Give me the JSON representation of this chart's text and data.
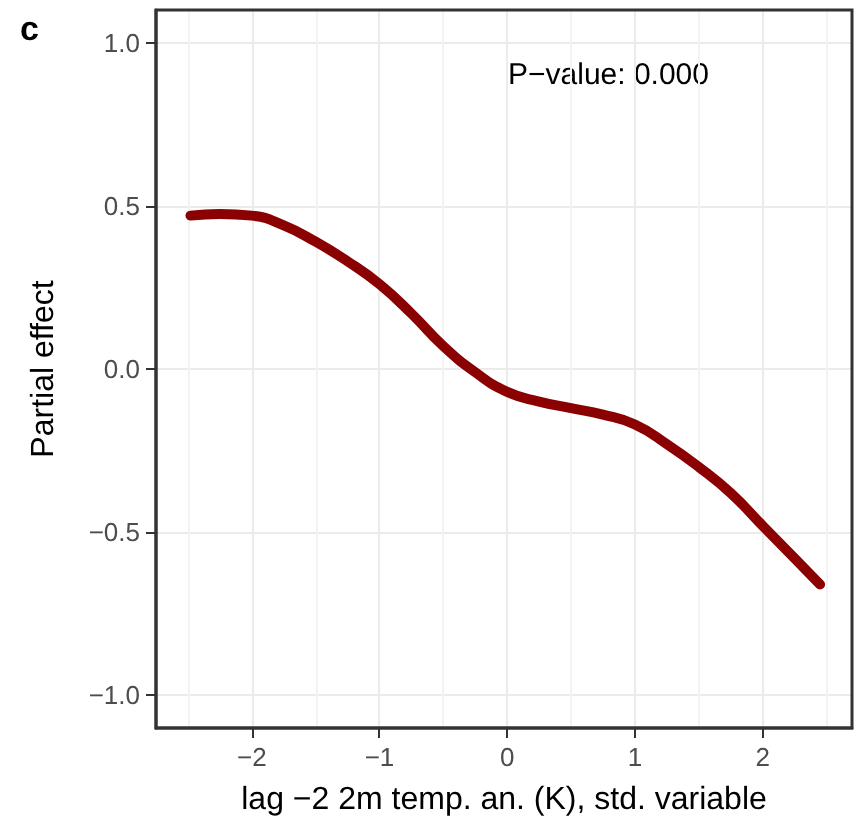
{
  "chart_data": {
    "type": "line",
    "ylabel": "Partial effect",
    "xlabel": "lag −2 2m temp. an. (K), std. variable",
    "annotations": [
      "c",
      "P−value: 0.000"
    ],
    "x": [
      -2.48,
      -2.25,
      -2,
      -1.75,
      -1.5,
      -1.25,
      -1,
      -0.75,
      -0.5,
      -0.25,
      0,
      0.25,
      0.5,
      0.75,
      1,
      1.25,
      1.5,
      1.75,
      2,
      2.25,
      2.45
    ],
    "series": [
      {
        "color": "#8b0000",
        "values": [
          0.47,
          0.475,
          0.47,
          0.44,
          0.39,
          0.33,
          0.26,
          0.17,
          0.07,
          -0.01,
          -0.07,
          -0.1,
          -0.12,
          -0.14,
          -0.17,
          -0.23,
          -0.3,
          -0.38,
          -0.48,
          -0.58,
          -0.66
        ]
      }
    ],
    "xlim": [
      -2.75,
      2.7
    ],
    "xticks": [
      -2,
      -1,
      0,
      1,
      2
    ],
    "ylim": [
      -1.1,
      1.1
    ],
    "yticks": [
      {
        "value": -1,
        "label": "−1.0"
      },
      -0.5,
      {
        "value": 0,
        "label": "0.0"
      },
      0.5,
      {
        "value": 1,
        "label": "1.0"
      }
    ],
    "grid": true,
    "marker": "none",
    "line_style": "solid"
  }
}
